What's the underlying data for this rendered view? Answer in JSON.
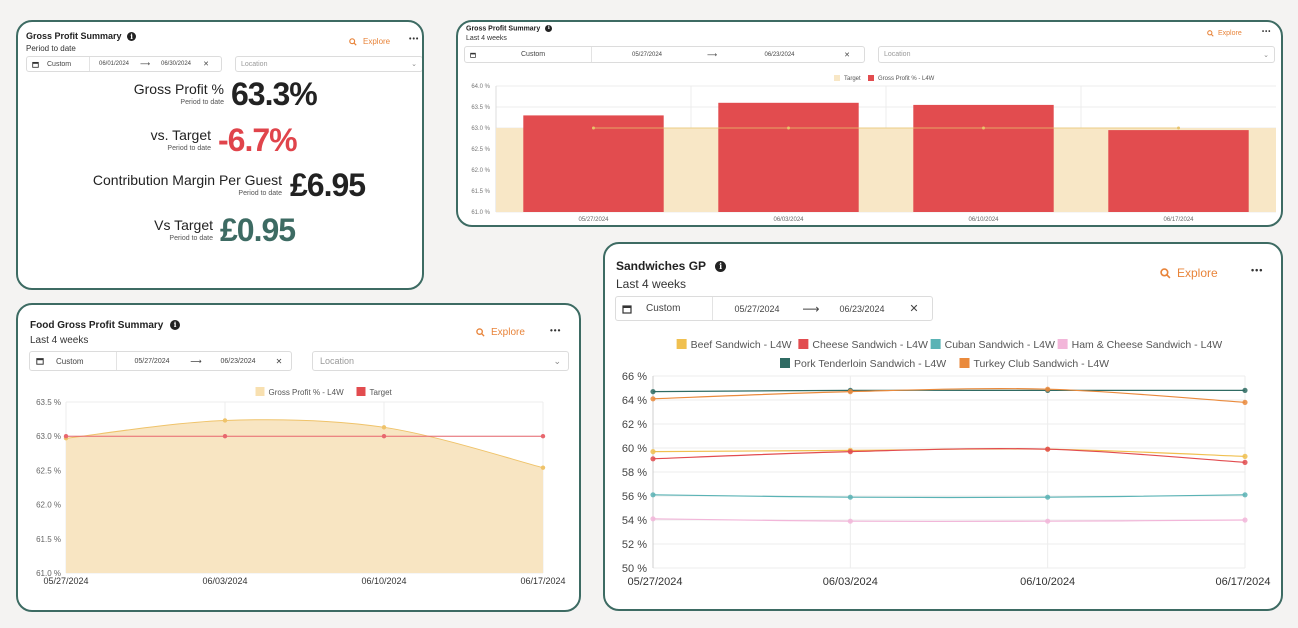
{
  "colors": {
    "border": "#3d6b63",
    "accent_orange": "#e8843a",
    "negative_red": "#e0444b",
    "positive_teal": "#3d6b63",
    "target_fill": "#f8e7c6",
    "bar_red": "#e24c4f",
    "area_fill": "#f8e5c2",
    "area_line": "#efc36a",
    "target_line": "#e8676e"
  },
  "common": {
    "explore_label": "Explore",
    "more_label": "•••",
    "custom_label": "Custom",
    "location_placeholder": "Location",
    "arrow": "⟶",
    "clear": "✕",
    "calendar_icon": "calendar-icon",
    "search_icon": "search-icon",
    "info_icon": "info-icon"
  },
  "card1": {
    "title": "Gross Profit Summary",
    "subtitle": "Period to date",
    "date_from": "06/01/2024",
    "date_to": "06/30/2024",
    "kpis": [
      {
        "label": "Gross Profit %",
        "sub": "Period to date",
        "value": "63.3%",
        "tone": "neutral"
      },
      {
        "label": "vs. Target",
        "sub": "Period to date",
        "value": "-6.7%",
        "tone": "negative"
      },
      {
        "label": "Contribution Margin Per Guest",
        "sub": "Period to date",
        "value": "£6.95",
        "tone": "neutral"
      },
      {
        "label": "Vs Target",
        "sub": "Period to date",
        "value": "£0.95",
        "tone": "positive"
      }
    ]
  },
  "card2": {
    "title": "Gross Profit Summary",
    "subtitle": "Last 4 weeks",
    "date_from": "05/27/2024",
    "date_to": "06/23/2024"
  },
  "card3": {
    "title": "Food Gross Profit Summary",
    "subtitle": "Last 4 weeks",
    "date_from": "05/27/2024",
    "date_to": "06/23/2024"
  },
  "card4": {
    "title": "Sandwiches GP",
    "subtitle": "Last 4 weeks",
    "date_from": "05/27/2024",
    "date_to": "06/23/2024"
  },
  "chart_data": [
    {
      "type": "bar",
      "categories": [
        "05/27/2024",
        "06/03/2024",
        "06/10/2024",
        "06/17/2024"
      ],
      "series": [
        {
          "name": "Target",
          "values": [
            63.0,
            63.0,
            63.0,
            63.0
          ],
          "color": "#f8e7c6"
        },
        {
          "name": "Gross Profit % - L4W",
          "values": [
            63.3,
            63.6,
            63.55,
            62.95
          ],
          "color": "#e24c4f"
        }
      ],
      "yticks": [
        "64.0 %",
        "63.5 %",
        "63.0 %",
        "62.5 %",
        "62.0 %",
        "61.5 %",
        "61.0 %"
      ],
      "ylim": [
        61.0,
        64.0
      ],
      "legend_position": "top-center",
      "grid": true
    },
    {
      "type": "area",
      "categories": [
        "05/27/2024",
        "06/03/2024",
        "06/10/2024",
        "06/17/2024"
      ],
      "series": [
        {
          "name": "Gross Profit % - L4W",
          "values": [
            62.97,
            63.23,
            63.13,
            62.54
          ],
          "color": "#efc36a"
        },
        {
          "name": "Target",
          "values": [
            63.0,
            63.0,
            63.0,
            63.0
          ],
          "color": "#e8676e"
        }
      ],
      "yticks": [
        "63.5 %",
        "63.0 %",
        "62.5 %",
        "62.0 %",
        "61.5 %",
        "61.0 %"
      ],
      "ylim": [
        61.0,
        63.5
      ],
      "legend_position": "top-center",
      "grid": true
    },
    {
      "type": "line",
      "categories": [
        "05/27/2024",
        "06/03/2024",
        "06/10/2024",
        "06/17/2024"
      ],
      "series": [
        {
          "name": "Beef Sandwich - L4W",
          "values": [
            59.7,
            59.8,
            59.9,
            59.3
          ],
          "color": "#f0c050"
        },
        {
          "name": "Cheese Sandwich - L4W",
          "values": [
            59.1,
            59.7,
            59.9,
            58.8
          ],
          "color": "#e24c4f"
        },
        {
          "name": "Cuban Sandwich - L4W",
          "values": [
            56.1,
            55.9,
            55.9,
            56.1
          ],
          "color": "#5ab3b5"
        },
        {
          "name": "Ham & Cheese Sandwich - L4W",
          "values": [
            54.1,
            53.9,
            53.9,
            54.0
          ],
          "color": "#f2b6d9"
        },
        {
          "name": "Pork Tenderloin Sandwich - L4W",
          "values": [
            64.7,
            64.8,
            64.8,
            64.8
          ],
          "color": "#2f6b63"
        },
        {
          "name": "Turkey Club Sandwich - L4W",
          "values": [
            64.1,
            64.7,
            64.9,
            63.8
          ],
          "color": "#ea8a3c"
        }
      ],
      "yticks": [
        "66 %",
        "64 %",
        "62 %",
        "60 %",
        "58 %",
        "56 %",
        "54 %",
        "52 %",
        "50 %"
      ],
      "ylim": [
        50,
        66
      ],
      "legend_position": "top-center",
      "grid": true
    }
  ]
}
